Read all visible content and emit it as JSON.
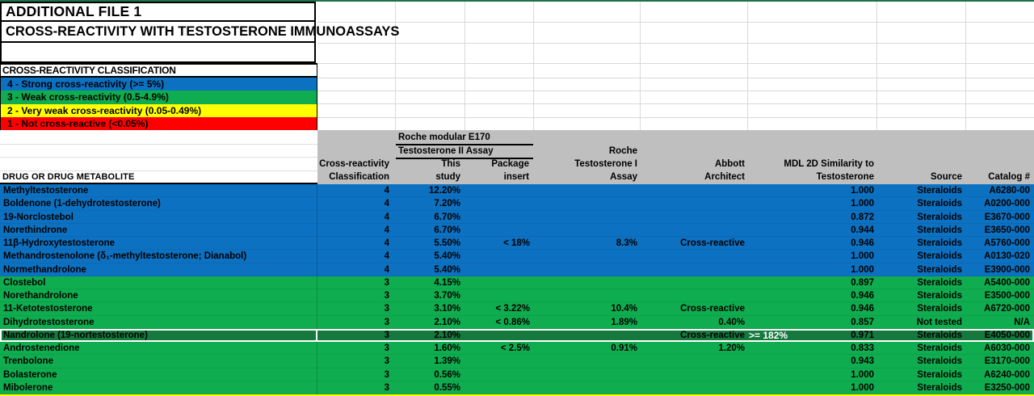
{
  "window": {
    "top_edge_color": "#1e7144"
  },
  "titles": {
    "file_label": "ADDITIONAL FILE 1",
    "main_title": "CROSS-REACTIVITY WITH TESTOSTERONE IMMUNOASSAYS"
  },
  "legend": {
    "header": "CROSS-REACTIVITY CLASSIFICATION",
    "items": [
      {
        "code": "4",
        "label": "4 - Strong cross-reactivity (>= 5%)",
        "color": "#0d71c2"
      },
      {
        "code": "3",
        "label": "3 - Weak cross-reactivity (0.5-4.9%)",
        "color": "#0fad4f"
      },
      {
        "code": "2",
        "label": "2 - Very weak cross-reactivity (0.05-0.49%)",
        "color": "#ffff00"
      },
      {
        "code": "1",
        "label": "1 - Not cross-reactive (<0.05%)",
        "color": "#ff0000"
      }
    ]
  },
  "table": {
    "group_header": {
      "line1": "Roche modular E170",
      "line2": "Testosterone II Assay"
    },
    "column_headers": {
      "drug": "DRUG OR DRUG METABOLITE",
      "classification": [
        "Cross-reactivity",
        "Classification"
      ],
      "this_study": [
        "This",
        "study"
      ],
      "package_insert": [
        "Package",
        "insert"
      ],
      "roche_t1": [
        "Roche",
        "Testosterone I",
        "Assay"
      ],
      "abbott": [
        "Abbott",
        "Architect"
      ],
      "mdl": [
        "MDL 2D Similarity to",
        "Testosterone"
      ],
      "source": "Source",
      "catalog": "Catalog #"
    },
    "rows": [
      {
        "name": "Methyltestosterone",
        "classification": "4",
        "this_study": "12.20%",
        "package_insert": "",
        "roche_t1": "",
        "abbott": "",
        "mdl": "1.000",
        "source": "Steraloids",
        "catalog": "A6280-00",
        "band": "blue"
      },
      {
        "name": "Boldenone (1-dehydrotestosterone)",
        "classification": "4",
        "this_study": "7.20%",
        "package_insert": "",
        "roche_t1": "",
        "abbott": "",
        "mdl": "1.000",
        "source": "Steraloids",
        "catalog": "A0200-000",
        "band": "blue"
      },
      {
        "name": "19-Norclostebol",
        "classification": "4",
        "this_study": "6.70%",
        "package_insert": "",
        "roche_t1": "",
        "abbott": "",
        "mdl": "0.872",
        "source": "Steraloids",
        "catalog": "E3670-000",
        "band": "blue"
      },
      {
        "name": "Norethindrone",
        "classification": "4",
        "this_study": "6.70%",
        "package_insert": "",
        "roche_t1": "",
        "abbott": "",
        "mdl": "0.944",
        "source": "Steraloids",
        "catalog": "E3650-000",
        "band": "blue"
      },
      {
        "name": "11β-Hydroxytestosterone",
        "classification": "4",
        "this_study": "5.50%",
        "package_insert": "< 18%",
        "roche_t1": "8.3%",
        "abbott": "Cross-reactive",
        "mdl": "0.946",
        "source": "Steraloids",
        "catalog": "A5760-000",
        "band": "blue"
      },
      {
        "name": "Methandrostenolone (δ₁-methyltestosterone; Dianabol)",
        "classification": "4",
        "this_study": "5.40%",
        "package_insert": "",
        "roche_t1": "",
        "abbott": "",
        "mdl": "1.000",
        "source": "Steraloids",
        "catalog": "A0130-020",
        "band": "blue"
      },
      {
        "name": "Normethandrolone",
        "classification": "4",
        "this_study": "5.40%",
        "package_insert": "",
        "roche_t1": "",
        "abbott": "",
        "mdl": "1.000",
        "source": "Steraloids",
        "catalog": "E3900-000",
        "band": "blue"
      },
      {
        "name": "Clostebol",
        "classification": "3",
        "this_study": "4.15%",
        "package_insert": "",
        "roche_t1": "",
        "abbott": "",
        "mdl": "0.897",
        "source": "Steraloids",
        "catalog": "A5400-000",
        "band": "green"
      },
      {
        "name": "Norethandrolone",
        "classification": "3",
        "this_study": "3.70%",
        "package_insert": "",
        "roche_t1": "",
        "abbott": "",
        "mdl": "0.946",
        "source": "Steraloids",
        "catalog": "E3500-000",
        "band": "green"
      },
      {
        "name": "11-Ketotestosterone",
        "classification": "3",
        "this_study": "3.10%",
        "package_insert": "< 3.22%",
        "roche_t1": "10.4%",
        "abbott": "Cross-reactive",
        "mdl": "0.946",
        "source": "Steraloids",
        "catalog": "A6720-000",
        "band": "green"
      },
      {
        "name": "Dihydrotestosterone",
        "classification": "3",
        "this_study": "2.10%",
        "package_insert": "< 0.86%",
        "roche_t1": "1.89%",
        "abbott": "0.40%",
        "mdl": "0.857",
        "source": "Not tested",
        "catalog": "N/A",
        "band": "green"
      },
      {
        "name": "Nandrolone (19-nortestosterone)",
        "classification": "3",
        "this_study": "2.10%",
        "package_insert": "",
        "roche_t1": "",
        "abbott": "Cross-reactive",
        "abbott_suffix_white": ">= 182%",
        "mdl": "0.971",
        "source": "Steraloids",
        "catalog": "E4050-000",
        "band": "green",
        "selected": true
      },
      {
        "name": "Androstenedione",
        "classification": "3",
        "this_study": "1.60%",
        "package_insert": "< 2.5%",
        "roche_t1": "0.91%",
        "abbott": "1.20%",
        "mdl": "0.833",
        "source": "Steraloids",
        "catalog": "A6030-000",
        "band": "green"
      },
      {
        "name": "Trenbolone",
        "classification": "3",
        "this_study": "1.39%",
        "package_insert": "",
        "roche_t1": "",
        "abbott": "",
        "mdl": "0.943",
        "source": "Steraloids",
        "catalog": "E3170-000",
        "band": "green"
      },
      {
        "name": "Bolasterone",
        "classification": "3",
        "this_study": "0.56%",
        "package_insert": "",
        "roche_t1": "",
        "abbott": "",
        "mdl": "1.000",
        "source": "Steraloids",
        "catalog": "A6240-000",
        "band": "green"
      },
      {
        "name": "Mibolerone",
        "classification": "3",
        "this_study": "0.55%",
        "package_insert": "",
        "roche_t1": "",
        "abbott": "",
        "mdl": "1.000",
        "source": "Steraloids",
        "catalog": "E3250-000",
        "band": "green"
      }
    ]
  },
  "colors": {
    "band_blue": "#0d71c2",
    "band_green": "#0fad4f",
    "selected_green": "#15793e",
    "header_gray": "#bfbfbf",
    "bottom_stripe": "#ffff00"
  }
}
